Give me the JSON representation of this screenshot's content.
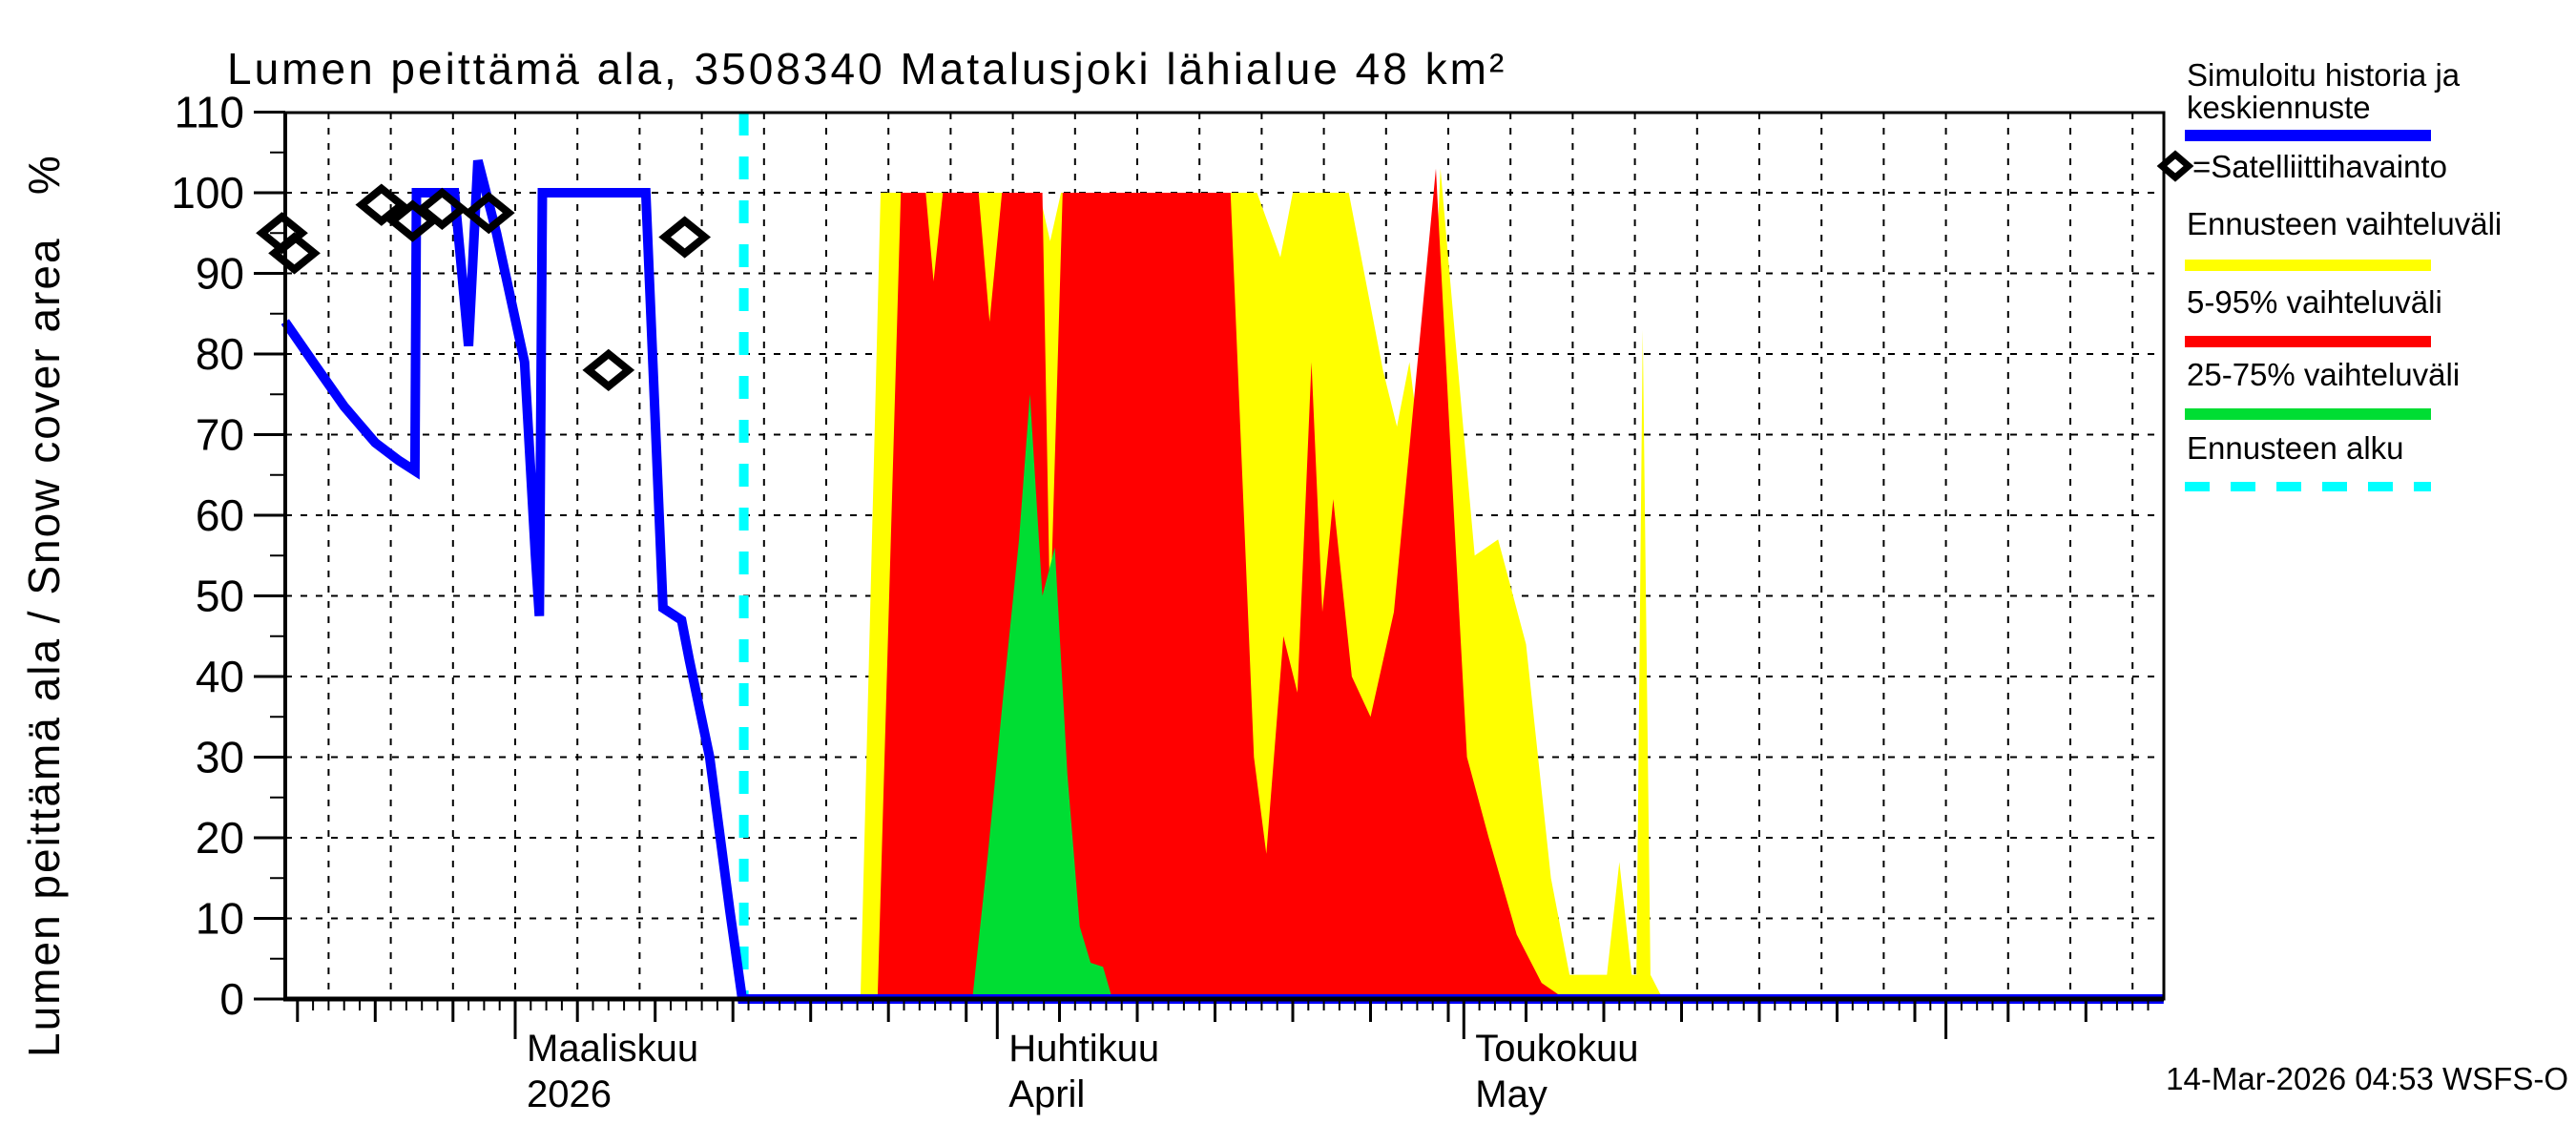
{
  "title": "Lumen peittämä ala, 3508340 Matalusjoki lähialue 48 km²",
  "y_axis": {
    "label_full": "Lumen peittämä ala / Snow cover area   %",
    "min": 0,
    "max": 110,
    "tick_step": 10
  },
  "legend": {
    "items": [
      {
        "label_line1": "Simuloitu historia ja",
        "label_line2": "keskiennuste",
        "swatch": "line",
        "color": "#0000ff"
      },
      {
        "label": "=Satelliittihavainto",
        "swatch": "diamond",
        "color": "#000000"
      },
      {
        "label": "Ennusteen vaihteluväli",
        "swatch": "line",
        "color": "#ffff00"
      },
      {
        "label": "5-95% vaihteluväli",
        "swatch": "line",
        "color": "#ff0000"
      },
      {
        "label": "25-75% vaihteluväli",
        "swatch": "line",
        "color": "#00dd33"
      },
      {
        "label": "Ennusteen alku",
        "swatch": "dashed-line",
        "color": "#00ffff"
      }
    ]
  },
  "footer": {
    "timestamp": "14-Mar-2026 04:53 WSFS-O"
  },
  "chart_data": {
    "type": "area",
    "title": "Lumen peittämä ala, 3508340 Matalusjoki lähialue 48 km²",
    "ylabel": "Lumen peittämä ala / Snow cover area %",
    "xlabel": "",
    "ylim": [
      0,
      110
    ],
    "x_unit": "days since 2026-03-01",
    "xlim": [
      -14.8,
      106
    ],
    "grid": true,
    "legend_position": "right-outside",
    "forecast_start_day": 14.7,
    "colors": {
      "history": "#0000ff",
      "range": "#ffff00",
      "p5_95": "#ff0000",
      "p25_75": "#00dd33",
      "forecast_start": "#00ffff",
      "grid": "#000000"
    },
    "x_ticks_months": [
      {
        "day": 0,
        "label": "Maaliskuu",
        "label2": "2026"
      },
      {
        "day": 31,
        "label": "Huhtikuu",
        "label2": "April"
      },
      {
        "day": 61,
        "label": "Toukokuu",
        "label2": "May"
      }
    ],
    "month_tick_days": [
      0,
      31,
      61,
      92
    ],
    "series": [
      {
        "name": "Simuloitu historia ja keskiennuste",
        "type": "line",
        "color": "#0000ff",
        "points": [
          [
            -14.8,
            84
          ],
          [
            -13,
            79
          ],
          [
            -11,
            73.5
          ],
          [
            -9,
            69
          ],
          [
            -7.5,
            66.8
          ],
          [
            -6.45,
            65.5
          ],
          [
            -6.35,
            100
          ],
          [
            -3.9,
            100
          ],
          [
            -3.0,
            81
          ],
          [
            -2.4,
            104
          ],
          [
            -1.2,
            95
          ],
          [
            0.6,
            79
          ],
          [
            1.3,
            55
          ],
          [
            1.55,
            47.5
          ],
          [
            1.75,
            100
          ],
          [
            8.4,
            100
          ],
          [
            9.5,
            48.5
          ],
          [
            10.7,
            47
          ],
          [
            11.2,
            42
          ],
          [
            12.5,
            30
          ],
          [
            13.8,
            11
          ],
          [
            14.6,
            0
          ],
          [
            106,
            0
          ]
        ]
      },
      {
        "name": "Satelliittihavainto",
        "type": "scatter",
        "marker": "diamond",
        "color": "#000000",
        "points": [
          [
            -15.0,
            95
          ],
          [
            -14.2,
            92.5
          ],
          [
            -8.6,
            98.5
          ],
          [
            -6.6,
            96.5
          ],
          [
            -4.7,
            98
          ],
          [
            -1.7,
            97.5
          ],
          [
            6.0,
            78
          ],
          [
            10.9,
            94.5
          ]
        ]
      },
      {
        "name": "Ennusteen vaihteluväli",
        "type": "area",
        "color": "#ffff00",
        "baseline": 0,
        "top": [
          [
            22.2,
            0
          ],
          [
            23.5,
            100
          ],
          [
            33.7,
            100
          ],
          [
            34.4,
            94
          ],
          [
            35.1,
            100
          ],
          [
            47.7,
            100
          ],
          [
            49.2,
            92
          ],
          [
            50.0,
            100
          ],
          [
            53.6,
            100
          ],
          [
            55.8,
            78
          ],
          [
            56.7,
            71
          ],
          [
            57.5,
            79
          ],
          [
            58.6,
            62
          ],
          [
            59.5,
            103
          ],
          [
            60.4,
            83
          ],
          [
            61.7,
            55
          ],
          [
            63.2,
            57
          ],
          [
            65.0,
            44
          ],
          [
            66.6,
            15
          ],
          [
            67.8,
            3
          ],
          [
            70.2,
            3
          ],
          [
            71.0,
            17
          ],
          [
            71.8,
            3
          ],
          [
            72.1,
            3
          ],
          [
            72.5,
            83
          ],
          [
            73.0,
            3
          ],
          [
            73.8,
            0
          ]
        ]
      },
      {
        "name": "5-95% vaihteluväli",
        "type": "area",
        "color": "#ff0000",
        "baseline": 0,
        "top": [
          [
            23.3,
            0
          ],
          [
            24.8,
            100
          ],
          [
            26.4,
            100
          ],
          [
            26.9,
            89
          ],
          [
            27.5,
            100
          ],
          [
            29.8,
            100
          ],
          [
            30.5,
            84
          ],
          [
            31.3,
            100
          ],
          [
            33.9,
            100
          ],
          [
            34.4,
            47
          ],
          [
            35.2,
            100
          ],
          [
            46.0,
            100
          ],
          [
            47.5,
            30
          ],
          [
            48.3,
            18
          ],
          [
            49.4,
            45
          ],
          [
            50.3,
            38
          ],
          [
            51.2,
            79
          ],
          [
            51.9,
            48
          ],
          [
            52.6,
            62
          ],
          [
            53.8,
            40
          ],
          [
            55.0,
            35
          ],
          [
            56.5,
            48
          ],
          [
            59.2,
            103
          ],
          [
            60.5,
            55
          ],
          [
            61.2,
            30
          ],
          [
            62.6,
            20
          ],
          [
            64.4,
            8
          ],
          [
            66.0,
            2
          ],
          [
            67.5,
            0
          ]
        ]
      },
      {
        "name": "25-75% vaihteluväli",
        "type": "area",
        "color": "#00dd33",
        "baseline": 0,
        "top": [
          [
            29.4,
            0
          ],
          [
            30.4,
            18
          ],
          [
            31.4,
            38
          ],
          [
            32.4,
            57
          ],
          [
            33.1,
            75
          ],
          [
            33.9,
            50
          ],
          [
            34.7,
            56
          ],
          [
            35.5,
            28
          ],
          [
            36.3,
            9
          ],
          [
            37.0,
            4.5
          ],
          [
            37.8,
            4
          ],
          [
            38.4,
            0
          ]
        ]
      },
      {
        "name": "Ennusteen alku",
        "type": "vline",
        "style": "dashed",
        "color": "#00ffff",
        "day": 14.7
      }
    ]
  }
}
